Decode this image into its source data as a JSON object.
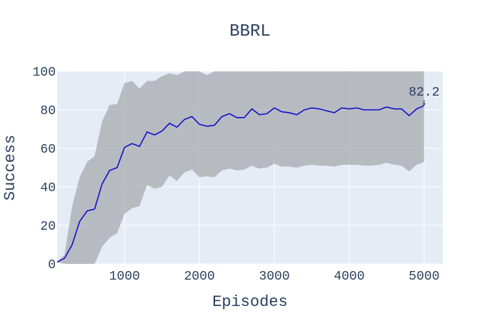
{
  "chart_data": {
    "type": "line",
    "title": "BBRL",
    "xlabel": "Episodes",
    "ylabel": "Success",
    "xlim": [
      100,
      5250
    ],
    "ylim": [
      0,
      100
    ],
    "x_ticks": [
      1000,
      2000,
      3000,
      4000,
      5000
    ],
    "y_ticks": [
      0,
      20,
      40,
      60,
      80,
      100
    ],
    "grid": true,
    "colors": {
      "background": "#e5ecf6",
      "grid": "#ffffff",
      "line": "#1010c8",
      "band": "#9ea0a4"
    },
    "series": [
      {
        "x": [
          100,
          200,
          300,
          400,
          500,
          600,
          700,
          800,
          900,
          1000,
          1100,
          1200,
          1300,
          1400,
          1500,
          1600,
          1700,
          1800,
          1900,
          2000,
          2100,
          2200,
          2300,
          2400,
          2500,
          2600,
          2700,
          2800,
          2900,
          3000,
          3100,
          3200,
          3300,
          3400,
          3500,
          3600,
          3700,
          3800,
          3900,
          4000,
          4100,
          4200,
          4300,
          4400,
          4500,
          4600,
          4700,
          4800,
          4900,
          5000
        ],
        "values": [
          1,
          3,
          10,
          22,
          27.5,
          28.5,
          41.5,
          48.5,
          50,
          60.5,
          62.5,
          61,
          68.5,
          67,
          69,
          73,
          71,
          75,
          76.5,
          72.5,
          71.5,
          72,
          76.5,
          78,
          76,
          76,
          80.5,
          77.5,
          78,
          81,
          79,
          78.5,
          77.5,
          80,
          81,
          80.5,
          79.5,
          78.5,
          81,
          80.5,
          81,
          80,
          80,
          80,
          81.5,
          80.5,
          80.5,
          77,
          80.5,
          82.2
        ],
        "upper": [
          1,
          5,
          30,
          45,
          53,
          56,
          74,
          82.5,
          83,
          94,
          95,
          91,
          95,
          95,
          97.5,
          99,
          98,
          100,
          100,
          100,
          98,
          100,
          100,
          100,
          100,
          100,
          100,
          100,
          100,
          100,
          100,
          100,
          100,
          100,
          100,
          100,
          100,
          100,
          100,
          100,
          100,
          100,
          100,
          100,
          100,
          100,
          100,
          100,
          100,
          100
        ],
        "lower": [
          1,
          0,
          0,
          0,
          0,
          0,
          9,
          13.5,
          16,
          26,
          29,
          30,
          41,
          39,
          40,
          46,
          43,
          47.5,
          49,
          45,
          45.5,
          45,
          48.5,
          49.5,
          48.5,
          49,
          51,
          49.5,
          50,
          52,
          50.5,
          50.5,
          50,
          51,
          51.5,
          51,
          51,
          50.5,
          51.5,
          51.5,
          51.5,
          51,
          51,
          51.5,
          52.5,
          51.5,
          51,
          48,
          51.5,
          53
        ]
      }
    ],
    "annotations": [
      {
        "x": 5000,
        "y": 82.2,
        "text": "82.2"
      }
    ]
  }
}
